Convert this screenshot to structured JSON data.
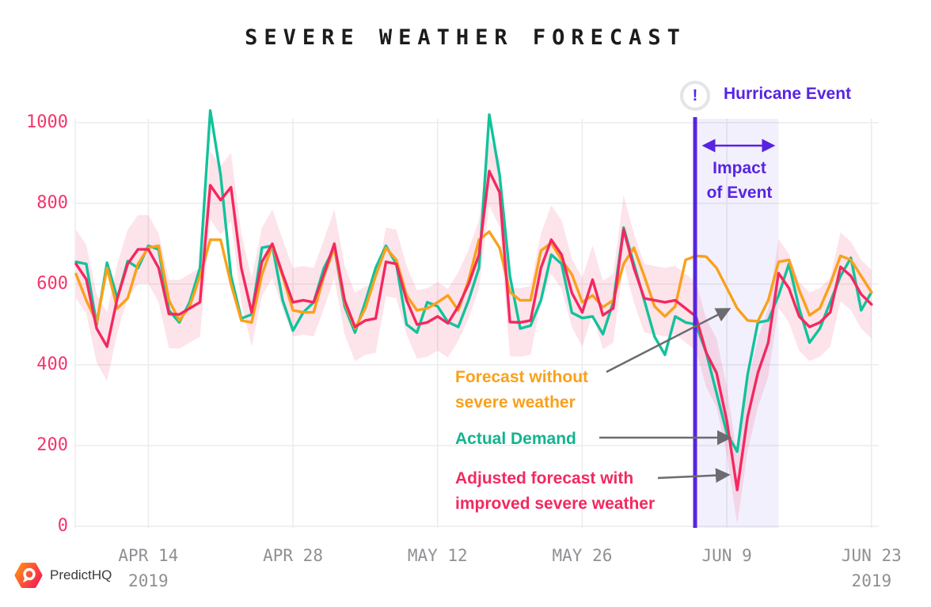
{
  "page": {
    "title": "SEVERE WEATHER FORECAST"
  },
  "logo": {
    "text": "PredictHQ"
  },
  "colors": {
    "forecast_orange": "#f9a11b",
    "actual_teal": "#12c29b",
    "adjusted_pink": "#f2295f",
    "band_pink": "#f2295f",
    "event_purple": "#5724e3",
    "grid": "#ececee",
    "x_tick_text": "#8f9094",
    "y_tick_text": "#f2356b",
    "arrow_gray": "#6b6b70",
    "title_text": "#1c1c1f"
  },
  "annotations": {
    "event_icon": "!",
    "event_label": "Hurricane Event",
    "impact_label_line1": "Impact",
    "impact_label_line2": "of Event",
    "forecast_label_line1": "Forecast without",
    "forecast_label_line2": "severe weather",
    "actual_label": "Actual Demand",
    "adjusted_label_line1": "Adjusted forecast with",
    "adjusted_label_line2": "improved severe weather"
  },
  "chart_data": {
    "type": "line",
    "title": "SEVERE WEATHER FORECAST",
    "x_start_date": "APR 7 2019",
    "x_step": "1 day",
    "n_points": 78,
    "grid": true,
    "ylim": [
      0,
      1040
    ],
    "y_ticks": [
      0,
      200,
      400,
      600,
      800,
      1000
    ],
    "x_ticks": [
      {
        "label": "APR 14",
        "day": 7,
        "sub": "2019"
      },
      {
        "label": "APR 28",
        "day": 21
      },
      {
        "label": "MAY 12",
        "day": 35
      },
      {
        "label": "MAY 26",
        "day": 49
      },
      {
        "label": "JUN 9",
        "day": 63
      },
      {
        "label": "JUN 23",
        "day": 77,
        "sub": "2019"
      }
    ],
    "event": {
      "label": "Hurricane Event",
      "region_label": "Impact of Event",
      "line_day": 60,
      "region_start_day": 60,
      "region_end_day": 68,
      "color": "#5724e3",
      "region_opacity": 0.07
    },
    "series": [
      {
        "key": "forecast",
        "name": "Forecast without severe weather",
        "color": "#f9a11b",
        "values": [
          625,
          560,
          505,
          640,
          540,
          565,
          650,
          690,
          695,
          560,
          510,
          545,
          620,
          710,
          710,
          600,
          510,
          505,
          624,
          696,
          620,
          535,
          530,
          530,
          620,
          690,
          555,
          490,
          540,
          620,
          690,
          660,
          572,
          535,
          540,
          555,
          572,
          535,
          610,
          710,
          730,
          690,
          580,
          560,
          560,
          683,
          702,
          660,
          624,
          555,
          572,
          543,
          560,
          650,
          690,
          620,
          545,
          520,
          545,
          660,
          670,
          668,
          640,
          590,
          540,
          510,
          508,
          560,
          655,
          660,
          585,
          523,
          540,
          600,
          670,
          660,
          620,
          580
        ]
      },
      {
        "key": "actual",
        "name": "Actual Demand",
        "color": "#12c29b",
        "values": [
          655,
          650,
          500,
          653,
          565,
          657,
          640,
          695,
          686,
          535,
          505,
          555,
          640,
          1030,
          870,
          620,
          515,
          525,
          690,
          695,
          560,
          485,
          530,
          555,
          640,
          690,
          545,
          480,
          555,
          640,
          695,
          650,
          500,
          480,
          555,
          545,
          506,
          494,
          560,
          640,
          1020,
          870,
          620,
          490,
          497,
          560,
          673,
          650,
          529,
          516,
          520,
          476,
          555,
          740,
          650,
          560,
          470,
          425,
          520,
          505,
          500,
          430,
          330,
          230,
          185,
          375,
          505,
          510,
          572,
          650,
          540,
          455,
          490,
          555,
          620,
          665,
          535,
          580
        ]
      },
      {
        "key": "adjusted",
        "name": "Adjusted forecast with improved severe weather",
        "color": "#f2295f",
        "band": {
          "halfwidth": 85,
          "min": 2,
          "max": 960,
          "opacity": 0.13
        },
        "values": [
          650,
          612,
          490,
          445,
          565,
          650,
          686,
          686,
          640,
          526,
          525,
          540,
          555,
          845,
          808,
          840,
          640,
          530,
          655,
          700,
          625,
          555,
          560,
          555,
          625,
          700,
          560,
          494,
          510,
          515,
          655,
          650,
          560,
          500,
          505,
          520,
          503,
          545,
          600,
          673,
          880,
          827,
          506,
          505,
          510,
          640,
          710,
          673,
          578,
          530,
          611,
          523,
          540,
          735,
          640,
          565,
          560,
          555,
          560,
          540,
          520,
          430,
          380,
          260,
          90,
          270,
          380,
          455,
          627,
          590,
          520,
          494,
          505,
          530,
          643,
          620,
          575,
          550
        ]
      }
    ]
  }
}
